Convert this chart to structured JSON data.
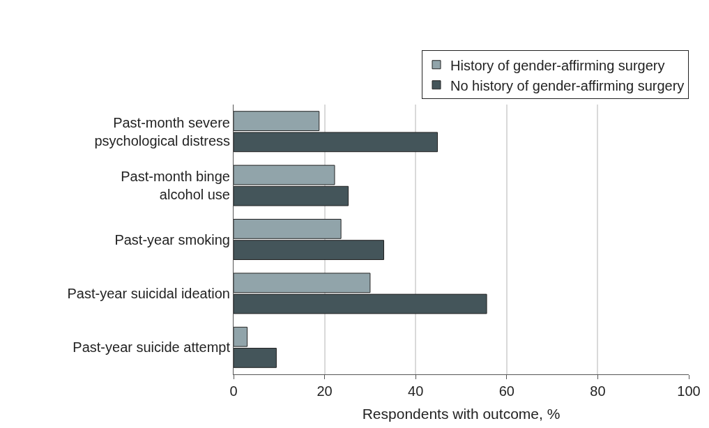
{
  "chart_data": {
    "type": "bar",
    "orientation": "horizontal",
    "xlabel": "Respondents with outcome, %",
    "categories": [
      "Past-month severe\npsychological distress",
      "Past-month binge\nalcohol use",
      "Past-year smoking",
      "Past-year suicidal ideation",
      "Past-year suicide attempt"
    ],
    "series": [
      {
        "name": "History of gender-affirming surgery",
        "color": "#91a4aa",
        "values": [
          18.8,
          22.2,
          23.6,
          30.0,
          3.0
        ]
      },
      {
        "name": "No history of gender-affirming surgery",
        "color": "#44555a",
        "values": [
          44.8,
          25.2,
          33.0,
          55.6,
          9.4
        ]
      }
    ],
    "xlim": [
      0,
      100
    ],
    "xticks": [
      0,
      20,
      40,
      60,
      80,
      100
    ],
    "grid": "x",
    "legend": "top right"
  }
}
